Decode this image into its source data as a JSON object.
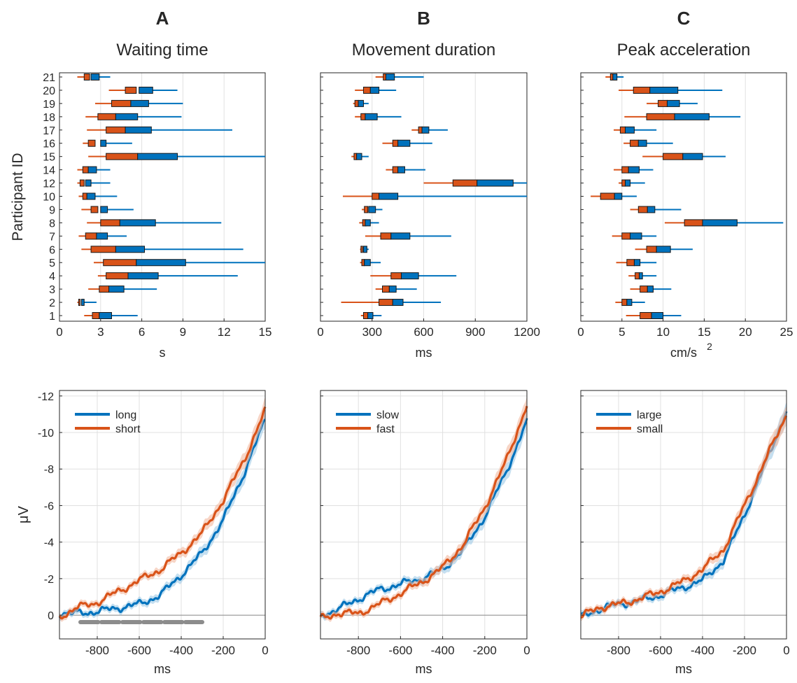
{
  "colors": {
    "primary": "#0072BD",
    "primary_light": "#9EC9E6",
    "secondary": "#D95319",
    "secondary_light": "#F2B9A0",
    "grid": "#E0E0E0",
    "axis": "#262626",
    "sig_bar": "#8C8C8C"
  },
  "panels": [
    {
      "letter": "A",
      "title": "Waiting time"
    },
    {
      "letter": "B",
      "title": "Movement duration"
    },
    {
      "letter": "C",
      "title": "Peak acceleration"
    }
  ],
  "chart_data": [
    {
      "type": "box",
      "panel": "A",
      "title": "Waiting time",
      "ylabel": "Participant ID",
      "xlabel": "s",
      "xlim": [
        0,
        15
      ],
      "xticks": [
        0,
        3,
        6,
        9,
        12,
        15
      ],
      "grid": true,
      "participants": [
        "1",
        "2",
        "3",
        "4",
        "5",
        "6",
        "7",
        "8",
        "9",
        "10",
        "12",
        "14",
        "15",
        "16",
        "17",
        "18",
        "19",
        "20",
        "21"
      ],
      "series": [
        {
          "name": "short",
          "color": "secondary",
          "boxes": [
            [
              1.8,
              2.4,
              2.9,
              3.2
            ],
            [
              1.3,
              1.4,
              1.5,
              1.7
            ],
            [
              2.1,
              2.9,
              3.6,
              4.2
            ],
            [
              2.8,
              3.4,
              5.0,
              6.8
            ],
            [
              2.5,
              3.2,
              5.6,
              7.5
            ],
            [
              1.6,
              2.3,
              4.1,
              5.8
            ],
            [
              1.4,
              1.9,
              2.7,
              3.4
            ],
            [
              2.0,
              3.0,
              4.4,
              6.1
            ],
            [
              1.6,
              2.3,
              2.8,
              3.3
            ],
            [
              1.4,
              1.7,
              2.0,
              2.3
            ],
            [
              1.3,
              1.5,
              1.8,
              2.1
            ],
            [
              1.3,
              1.7,
              2.1,
              2.5
            ],
            [
              2.1,
              3.4,
              5.7,
              8.2
            ],
            [
              1.7,
              2.1,
              2.6,
              3.1
            ],
            [
              2.0,
              3.4,
              4.8,
              6.0
            ],
            [
              1.9,
              2.8,
              4.1,
              5.3
            ],
            [
              2.6,
              3.8,
              5.2,
              6.2
            ],
            [
              3.6,
              4.8,
              5.6,
              6.3
            ],
            [
              1.3,
              1.8,
              2.2,
              2.5
            ]
          ]
        },
        {
          "name": "long",
          "color": "primary",
          "boxes": [
            [
              2.5,
              2.9,
              3.8,
              5.7
            ],
            [
              1.5,
              1.6,
              1.8,
              2.7
            ],
            [
              3.0,
              3.6,
              4.7,
              7.1
            ],
            [
              4.2,
              5.0,
              7.2,
              13.0
            ],
            [
              4.6,
              5.6,
              9.2,
              15.0
            ],
            [
              3.2,
              4.1,
              6.2,
              13.4
            ],
            [
              2.2,
              2.7,
              3.5,
              4.9
            ],
            [
              3.6,
              4.4,
              7.0,
              11.8
            ],
            [
              2.7,
              3.0,
              3.5,
              5.4
            ],
            [
              1.9,
              2.0,
              2.6,
              4.2
            ],
            [
              1.7,
              1.9,
              2.3,
              3.7
            ],
            [
              1.8,
              2.1,
              2.7,
              3.7
            ],
            [
              4.4,
              5.7,
              8.6,
              15.0
            ],
            [
              2.6,
              3.0,
              3.4,
              5.3
            ],
            [
              4.0,
              4.8,
              6.7,
              12.6
            ],
            [
              3.2,
              4.1,
              5.7,
              8.9
            ],
            [
              4.2,
              5.2,
              6.5,
              9.0
            ],
            [
              4.9,
              5.8,
              6.8,
              8.6
            ],
            [
              2.0,
              2.3,
              2.9,
              3.7
            ]
          ]
        }
      ]
    },
    {
      "type": "box",
      "panel": "B",
      "title": "Movement duration",
      "xlabel": "ms",
      "xlim": [
        0,
        1200
      ],
      "xticks": [
        0,
        300,
        600,
        900,
        1200
      ],
      "grid": true,
      "participants": [
        "1",
        "2",
        "3",
        "4",
        "5",
        "6",
        "7",
        "8",
        "9",
        "10",
        "12",
        "14",
        "15",
        "16",
        "17",
        "18",
        "19",
        "20",
        "21"
      ],
      "series": [
        {
          "name": "fast",
          "color": "secondary",
          "boxes": [
            [
              235,
              250,
              275,
              290
            ],
            [
              120,
              340,
              420,
              470
            ],
            [
              320,
              360,
              400,
              430
            ],
            [
              290,
              410,
              470,
              530
            ],
            [
              230,
              240,
              255,
              265
            ],
            [
              230,
              235,
              245,
              255
            ],
            [
              260,
              350,
              410,
              460
            ],
            [
              225,
              245,
              265,
              280
            ],
            [
              240,
              255,
              275,
              290
            ],
            [
              130,
              300,
              340,
              380
            ],
            [
              600,
              770,
              910,
              1000
            ],
            [
              380,
              420,
              450,
              475
            ],
            [
              180,
              195,
              210,
              225
            ],
            [
              360,
              420,
              450,
              480
            ],
            [
              530,
              570,
              590,
              610
            ],
            [
              200,
              235,
              260,
              290
            ],
            [
              190,
              200,
              220,
              230
            ],
            [
              200,
              250,
              290,
              320
            ],
            [
              320,
              365,
              390,
              410
            ]
          ]
        },
        {
          "name": "slow",
          "color": "primary",
          "boxes": [
            [
              265,
              275,
              305,
              355
            ],
            [
              400,
              420,
              480,
              700
            ],
            [
              380,
              400,
              440,
              560
            ],
            [
              420,
              470,
              570,
              790
            ],
            [
              250,
              255,
              290,
              350
            ],
            [
              245,
              250,
              270,
              280
            ],
            [
              370,
              410,
              520,
              760
            ],
            [
              250,
              260,
              290,
              340
            ],
            [
              270,
              280,
              320,
              360
            ],
            [
              300,
              340,
              450,
              1200
            ],
            [
              850,
              910,
              1120,
              1200
            ],
            [
              430,
              450,
              490,
              610
            ],
            [
              200,
              210,
              240,
              280
            ],
            [
              410,
              450,
              520,
              650
            ],
            [
              560,
              590,
              630,
              740
            ],
            [
              240,
              260,
              330,
              470
            ],
            [
              210,
              220,
              250,
              280
            ],
            [
              260,
              290,
              340,
              440
            ],
            [
              360,
              380,
              430,
              600
            ]
          ]
        }
      ]
    },
    {
      "type": "box",
      "panel": "C",
      "title": "Peak acceleration",
      "xlabel": "cm/s",
      "xlabel_sup": "2",
      "xlim": [
        0,
        25
      ],
      "xticks": [
        0,
        5,
        10,
        15,
        20,
        25
      ],
      "grid": true,
      "participants": [
        "1",
        "2",
        "3",
        "4",
        "5",
        "6",
        "7",
        "8",
        "9",
        "10",
        "12",
        "14",
        "15",
        "16",
        "17",
        "18",
        "19",
        "20",
        "21"
      ],
      "series": [
        {
          "name": "small",
          "color": "secondary",
          "boxes": [
            [
              5.5,
              7.2,
              8.6,
              9.8
            ],
            [
              4.2,
              5.0,
              5.6,
              6.0
            ],
            [
              6.0,
              7.2,
              8.1,
              8.7
            ],
            [
              5.8,
              6.6,
              7.1,
              7.4
            ],
            [
              4.3,
              5.6,
              6.5,
              7.0
            ],
            [
              6.6,
              8.0,
              9.2,
              10.2
            ],
            [
              3.8,
              5.0,
              6.0,
              6.8
            ],
            [
              10.2,
              12.6,
              14.8,
              17.8
            ],
            [
              6.0,
              7.0,
              8.1,
              9.0
            ],
            [
              1.2,
              2.4,
              4.1,
              5.2
            ],
            [
              4.6,
              5.0,
              5.4,
              5.8
            ],
            [
              4.0,
              5.0,
              5.8,
              6.5
            ],
            [
              7.5,
              10.0,
              12.4,
              14.0
            ],
            [
              5.2,
              6.0,
              7.0,
              7.8
            ],
            [
              4.0,
              4.8,
              5.4,
              6.0
            ],
            [
              5.3,
              8.0,
              11.4,
              14.0
            ],
            [
              8.0,
              9.4,
              10.5,
              11.0
            ],
            [
              4.6,
              6.4,
              8.4,
              10.5
            ],
            [
              3.0,
              3.6,
              3.9,
              4.2
            ]
          ]
        },
        {
          "name": "large",
          "color": "primary",
          "boxes": [
            [
              8.2,
              8.6,
              10.0,
              12.2
            ],
            [
              5.2,
              5.6,
              6.2,
              7.8
            ],
            [
              7.6,
              8.1,
              8.8,
              11.0
            ],
            [
              6.8,
              7.1,
              7.5,
              9.2
            ],
            [
              6.2,
              6.5,
              7.2,
              9.2
            ],
            [
              8.7,
              9.2,
              10.9,
              13.6
            ],
            [
              5.6,
              6.0,
              7.4,
              9.2
            ],
            [
              14.0,
              14.8,
              19.0,
              24.6
            ],
            [
              8.0,
              8.1,
              9.0,
              12.2
            ],
            [
              3.8,
              4.1,
              5.0,
              6.8
            ],
            [
              5.2,
              5.4,
              6.0,
              7.8
            ],
            [
              5.6,
              5.8,
              7.1,
              8.8
            ],
            [
              12.0,
              12.4,
              14.8,
              17.6
            ],
            [
              6.6,
              7.0,
              8.0,
              11.2
            ],
            [
              5.2,
              5.4,
              6.5,
              9.2
            ],
            [
              10.8,
              11.4,
              15.6,
              19.4
            ],
            [
              10.2,
              10.5,
              12.0,
              14.2
            ],
            [
              8.0,
              8.4,
              11.8,
              17.2
            ],
            [
              3.7,
              3.9,
              4.4,
              5.2
            ]
          ]
        }
      ]
    },
    {
      "type": "line",
      "panel": "A",
      "ylabel": "μV",
      "xlabel": "ms",
      "xlim": [
        -980,
        0
      ],
      "xticks": [
        -800,
        -600,
        -400,
        -200,
        0
      ],
      "ylim": [
        1.3,
        -12.3
      ],
      "yticks": [
        -12,
        -10,
        -8,
        -6,
        -4,
        -2,
        0
      ],
      "y_reversed": true,
      "grid": true,
      "legend_position": "top-left",
      "x": [
        -980,
        -900,
        -800,
        -700,
        -600,
        -500,
        -400,
        -300,
        -200,
        -100,
        0
      ],
      "series": [
        {
          "name": "long",
          "color": "primary",
          "values": [
            -0.1,
            -0.1,
            -0.2,
            -0.4,
            -0.6,
            -1.1,
            -2.2,
            -3.4,
            -5.2,
            -7.8,
            -10.7
          ]
        },
        {
          "name": "short",
          "color": "secondary",
          "values": [
            0.1,
            -0.4,
            -0.7,
            -1.3,
            -1.9,
            -2.5,
            -3.4,
            -4.5,
            -6.3,
            -8.5,
            -11.2
          ]
        }
      ],
      "significance_interval": [
        -880,
        -300
      ]
    },
    {
      "type": "line",
      "panel": "B",
      "xlabel": "ms",
      "xlim": [
        -980,
        0
      ],
      "xticks": [
        -800,
        -600,
        -400,
        -200,
        0
      ],
      "ylim": [
        1.3,
        -12.3
      ],
      "y_reversed": true,
      "grid": true,
      "legend_position": "top-left",
      "x": [
        -980,
        -900,
        -800,
        -700,
        -600,
        -500,
        -400,
        -300,
        -200,
        -100,
        0
      ],
      "series": [
        {
          "name": "slow",
          "color": "primary",
          "values": [
            0.0,
            -0.3,
            -0.9,
            -1.4,
            -1.7,
            -2.0,
            -2.5,
            -3.6,
            -5.4,
            -7.8,
            -10.6
          ]
        },
        {
          "name": "fast",
          "color": "secondary",
          "values": [
            0.2,
            -0.1,
            -0.1,
            -0.6,
            -1.2,
            -1.8,
            -2.6,
            -3.9,
            -5.9,
            -8.4,
            -11.5
          ]
        }
      ]
    },
    {
      "type": "line",
      "panel": "C",
      "xlabel": "ms",
      "xlim": [
        -980,
        0
      ],
      "xticks": [
        -800,
        -600,
        -400,
        -200,
        0
      ],
      "ylim": [
        1.3,
        -12.3
      ],
      "y_reversed": true,
      "grid": true,
      "legend_position": "top-left",
      "x": [
        -980,
        -900,
        -800,
        -700,
        -600,
        -500,
        -400,
        -300,
        -200,
        -100,
        0
      ],
      "series": [
        {
          "name": "large",
          "color": "primary",
          "values": [
            0.1,
            -0.3,
            -0.6,
            -0.8,
            -1.1,
            -1.5,
            -1.9,
            -3.0,
            -5.5,
            -8.3,
            -11.2
          ]
        },
        {
          "name": "small",
          "color": "secondary",
          "values": [
            0.1,
            -0.4,
            -0.6,
            -0.9,
            -1.3,
            -1.8,
            -2.5,
            -3.6,
            -6.0,
            -8.5,
            -11.0
          ]
        }
      ]
    }
  ]
}
